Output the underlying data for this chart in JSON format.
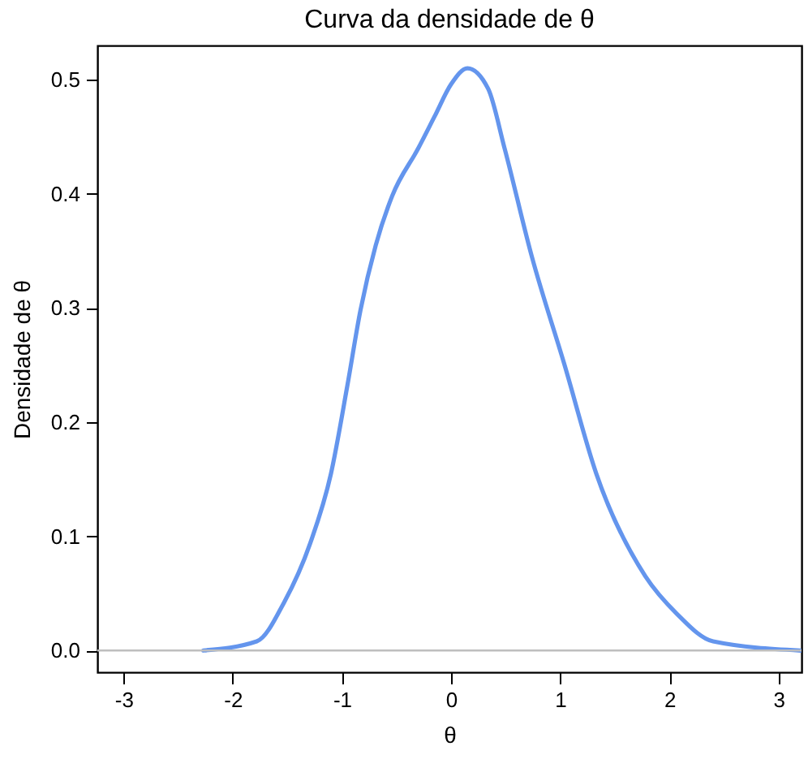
{
  "chart_data": {
    "type": "line",
    "title": "Curva da densidade de θ",
    "xlabel": "θ",
    "ylabel": "Densidade de θ",
    "series": [
      {
        "color": "#6495ed",
        "x": [
          -2.27,
          -1.78,
          -1.53,
          -1.29,
          -1.1,
          -0.95,
          -0.83,
          -0.69,
          -0.54,
          -0.3,
          -0.15,
          0,
          0.15,
          0.34,
          0.49,
          0.74,
          1.04,
          1.33,
          1.78,
          2.07,
          2.4,
          3.2
        ],
        "values": [
          0,
          0.008,
          0.042,
          0.094,
          0.155,
          0.232,
          0.298,
          0.355,
          0.398,
          0.44,
          0.468,
          0.496,
          0.51,
          0.492,
          0.44,
          0.345,
          0.25,
          0.155,
          0.065,
          0.032,
          0.008,
          0
        ]
      }
    ],
    "xlim": [
      -3.24,
      3.21
    ],
    "ylim": [
      -0.019,
      0.53
    ],
    "xticks": [
      -3,
      -2,
      -1,
      0,
      1,
      2,
      3
    ],
    "yticks": [
      {
        "value": 0,
        "label": "0.0"
      },
      {
        "value": 0.1,
        "label": "0.1"
      },
      {
        "value": 0.2,
        "label": "0.2"
      },
      {
        "value": 0.3,
        "label": "0.3"
      },
      {
        "value": 0.4,
        "label": "0.4"
      },
      {
        "value": 0.5,
        "label": "0.5"
      }
    ],
    "ref_lines": [
      {
        "axis": "y",
        "value": 0,
        "color": "#bebebe"
      }
    ],
    "line_style": "solid"
  }
}
